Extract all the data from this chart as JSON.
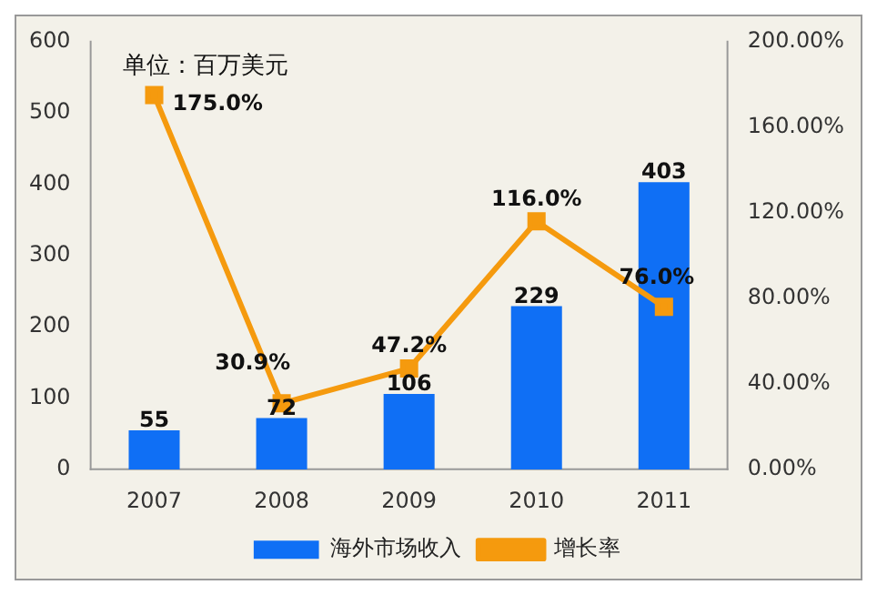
{
  "chart_data": {
    "type": "bar",
    "categories": [
      "2007",
      "2008",
      "2009",
      "2010",
      "2011"
    ],
    "series": [
      {
        "name": "海外市场收入",
        "color": "#0f6ff5",
        "values": [
          55,
          72,
          106,
          229,
          403
        ],
        "value_labels": [
          "55",
          "72",
          "106",
          "229",
          "403"
        ]
      },
      {
        "name": "增长率",
        "type": "line",
        "axis": "y2",
        "color": "#f59a0e",
        "marker": "square",
        "values": [
          175.0,
          30.9,
          47.2,
          116.0,
          76.0
        ],
        "value_labels": [
          "175.0%",
          "30.9%",
          "47.2%",
          "116.0%",
          "76.0%"
        ]
      }
    ],
    "ylim": [
      0,
      600
    ],
    "yticks": [
      0,
      100,
      200,
      300,
      400,
      500,
      600
    ],
    "y2lim": [
      0,
      200
    ],
    "y2ticks": [
      {
        "value": 0,
        "label": "0.00%"
      },
      {
        "value": 40,
        "label": "40.00%"
      },
      {
        "value": 80,
        "label": "80.00%"
      },
      {
        "value": 120,
        "label": "120.00%"
      },
      {
        "value": 160,
        "label": "160.00%"
      },
      {
        "value": 200,
        "label": "200.00%"
      }
    ],
    "annotations": [
      "单位：百万美元"
    ],
    "legend": "bottom",
    "grid": false
  }
}
